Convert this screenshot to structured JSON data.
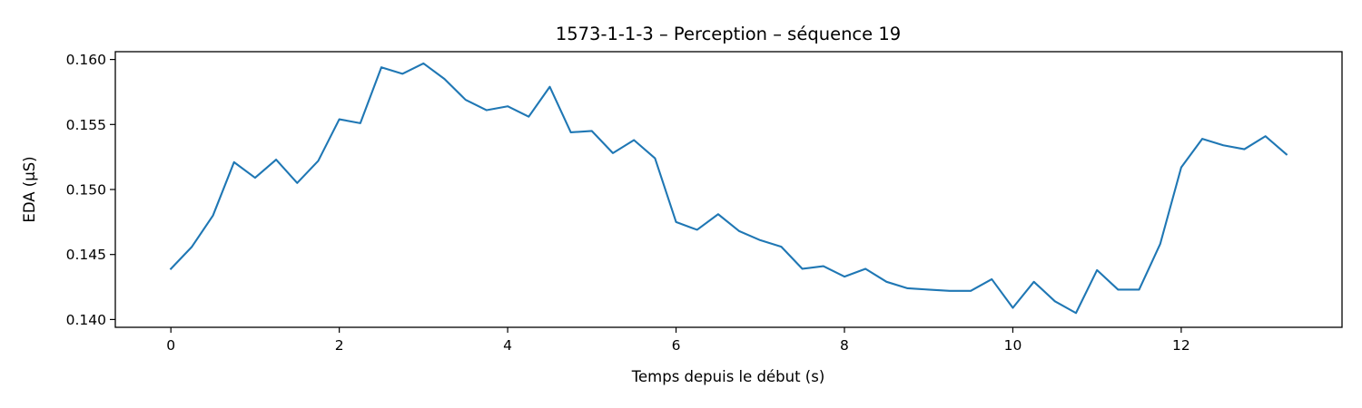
{
  "chart_data": {
    "type": "line",
    "title": "1573-1-1-3 – Perception – séquence 19",
    "xlabel": "Temps depuis le début (s)",
    "ylabel": "EDA (µS)",
    "xlim": [
      -0.66,
      13.91
    ],
    "ylim": [
      0.1394,
      0.1606
    ],
    "xticks": [
      0,
      2,
      4,
      6,
      8,
      10,
      12
    ],
    "yticks": [
      0.14,
      0.145,
      0.15,
      0.155,
      0.16
    ],
    "ytick_labels": [
      "0.140",
      "0.145",
      "0.150",
      "0.155",
      "0.160"
    ],
    "grid": false,
    "series": [
      {
        "color": "#1f77b4",
        "x": [
          0,
          0.25,
          0.5,
          0.75,
          1.0,
          1.25,
          1.5,
          1.75,
          2.0,
          2.25,
          2.5,
          2.75,
          3.0,
          3.25,
          3.5,
          3.75,
          4.0,
          4.25,
          4.5,
          4.75,
          5.0,
          5.25,
          5.5,
          5.75,
          6.0,
          6.25,
          6.5,
          6.75,
          7.0,
          7.25,
          7.5,
          7.75,
          8.0,
          8.25,
          8.5,
          8.75,
          9.0,
          9.25,
          9.5,
          9.75,
          10.0,
          10.25,
          10.5,
          10.75,
          11.0,
          11.25,
          11.5,
          11.75,
          12.0,
          12.25,
          12.5,
          12.75,
          13.0,
          13.25
        ],
        "y": [
          0.1439,
          0.1456,
          0.148,
          0.1521,
          0.1509,
          0.1523,
          0.1505,
          0.1522,
          0.1554,
          0.1551,
          0.1594,
          0.1589,
          0.1597,
          0.1585,
          0.1569,
          0.1561,
          0.1564,
          0.1556,
          0.1579,
          0.1544,
          0.1545,
          0.1528,
          0.1538,
          0.1524,
          0.1475,
          0.1469,
          0.1481,
          0.1468,
          0.1461,
          0.1456,
          0.1439,
          0.1441,
          0.1433,
          0.1439,
          0.1429,
          0.1424,
          0.1423,
          0.1422,
          0.1422,
          0.1431,
          0.1409,
          0.1429,
          0.1414,
          0.1405,
          0.1438,
          0.1423,
          0.1423,
          0.1458,
          0.1517,
          0.1539,
          0.1534,
          0.1531,
          0.1541,
          0.1527
        ]
      }
    ]
  }
}
